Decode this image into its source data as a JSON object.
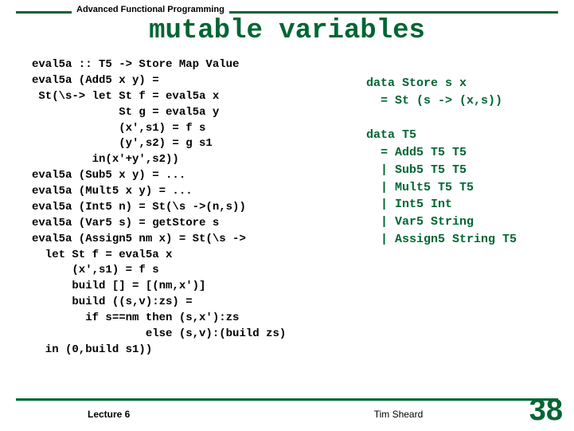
{
  "course": "Advanced Functional Programming",
  "title": "mutable variables",
  "code_left": "eval5a :: T5 -> Store Map Value\neval5a (Add5 x y) =\n St(\\s-> let St f = eval5a x\n             St g = eval5a y\n             (x',s1) = f s\n             (y',s2) = g s1\n         in(x'+y',s2))\neval5a (Sub5 x y) = ...\neval5a (Mult5 x y) = ...\neval5a (Int5 n) = St(\\s ->(n,s))\neval5a (Var5 s) = getStore s\neval5a (Assign5 nm x) = St(\\s ->\n  let St f = eval5a x\n      (x',s1) = f s\n      build [] = [(nm,x')]\n      build ((s,v):zs) =\n        if s==nm then (s,x'):zs\n                 else (s,v):(build zs)\n  in (0,build s1))",
  "code_right": "data Store s x\n  = St (s -> (x,s))\n\ndata T5\n  = Add5 T5 T5\n  | Sub5 T5 T5\n  | Mult5 T5 T5\n  | Int5 Int\n  | Var5 String\n  | Assign5 String T5",
  "footer_left": "Lecture 6",
  "footer_center": "Tim Sheard",
  "page_number": "38",
  "colors": {
    "accent": "#006633",
    "text": "#000000",
    "bg": "#ffffff"
  }
}
